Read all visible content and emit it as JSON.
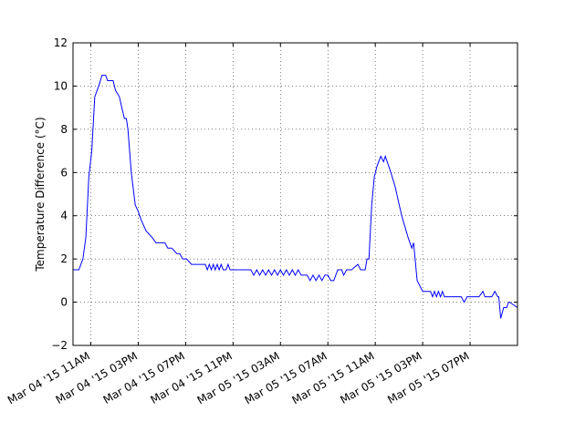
{
  "chart_data": {
    "type": "line",
    "ylabel": "Temperature Difference (°C)",
    "x": [
      "2015-03-04T09:30",
      "2015-03-04T10:00",
      "2015-03-04T10:20",
      "2015-03-04T10:35",
      "2015-03-04T10:50",
      "2015-03-04T11:05",
      "2015-03-04T11:20",
      "2015-03-04T11:40",
      "2015-03-04T11:57",
      "2015-03-04T12:15",
      "2015-03-04T12:25",
      "2015-03-04T12:53",
      "2015-03-04T13:05",
      "2015-03-04T13:25",
      "2015-03-04T13:37",
      "2015-03-04T13:50",
      "2015-03-04T14:00",
      "2015-03-04T14:08",
      "2015-03-04T14:25",
      "2015-03-04T14:45",
      "2015-03-04T15:00",
      "2015-03-04T15:15",
      "2015-03-04T15:40",
      "2015-03-04T16:10",
      "2015-03-04T16:30",
      "2015-03-04T17:15",
      "2015-03-04T17:30",
      "2015-03-04T17:50",
      "2015-03-04T18:15",
      "2015-03-04T18:30",
      "2015-03-04T18:45",
      "2015-03-04T19:05",
      "2015-03-04T19:30",
      "2015-03-04T20:40",
      "2015-03-04T20:50",
      "2015-03-04T21:00",
      "2015-03-04T21:10",
      "2015-03-04T21:20",
      "2015-03-04T21:30",
      "2015-03-04T21:40",
      "2015-03-04T21:50",
      "2015-03-04T22:00",
      "2015-03-04T22:10",
      "2015-03-04T22:25",
      "2015-03-04T22:35",
      "2015-03-04T22:45",
      "2015-03-05T00:30",
      "2015-03-05T00:45",
      "2015-03-05T01:00",
      "2015-03-05T01:15",
      "2015-03-05T01:30",
      "2015-03-05T01:45",
      "2015-03-05T02:00",
      "2015-03-05T02:15",
      "2015-03-05T02:30",
      "2015-03-05T02:45",
      "2015-03-05T03:00",
      "2015-03-05T03:15",
      "2015-03-05T03:30",
      "2015-03-05T03:45",
      "2015-03-05T04:00",
      "2015-03-05T04:15",
      "2015-03-05T04:30",
      "2015-03-05T04:45",
      "2015-03-05T05:15",
      "2015-03-05T05:30",
      "2015-03-05T05:45",
      "2015-03-05T06:00",
      "2015-03-05T06:15",
      "2015-03-05T06:30",
      "2015-03-05T06:45",
      "2015-03-05T07:00",
      "2015-03-05T07:15",
      "2015-03-05T07:30",
      "2015-03-05T07:50",
      "2015-03-05T08:10",
      "2015-03-05T08:20",
      "2015-03-05T08:35",
      "2015-03-05T09:00",
      "2015-03-05T09:32",
      "2015-03-05T09:46",
      "2015-03-05T10:09",
      "2015-03-05T10:18",
      "2015-03-05T10:28",
      "2015-03-05T10:42",
      "2015-03-05T10:55",
      "2015-03-05T11:09",
      "2015-03-05T11:28",
      "2015-03-05T11:42",
      "2015-03-05T11:51",
      "2015-03-05T12:19",
      "2015-03-05T12:42",
      "2015-03-05T12:55",
      "2015-03-05T13:14",
      "2015-03-05T13:46",
      "2015-03-05T14:05",
      "2015-03-05T14:14",
      "2015-03-05T14:32",
      "2015-03-05T14:46",
      "2015-03-05T15:00",
      "2015-03-05T15:40",
      "2015-03-05T15:50",
      "2015-03-05T16:00",
      "2015-03-05T16:10",
      "2015-03-05T16:20",
      "2015-03-05T16:30",
      "2015-03-05T16:40",
      "2015-03-05T16:50",
      "2015-03-05T17:30",
      "2015-03-05T18:15",
      "2015-03-05T18:30",
      "2015-03-05T18:45",
      "2015-03-05T19:45",
      "2015-03-05T20:05",
      "2015-03-05T20:15",
      "2015-03-05T20:50",
      "2015-03-05T21:05",
      "2015-03-05T21:20",
      "2015-03-05T21:25",
      "2015-03-05T21:35",
      "2015-03-05T21:50",
      "2015-03-05T22:05",
      "2015-03-05T22:15",
      "2015-03-05T22:20",
      "2015-03-05T23:00"
    ],
    "series": [
      {
        "color": "#0000ff",
        "values": [
          1.5,
          1.5,
          2.0,
          3.0,
          5.8,
          7.0,
          9.5,
          10.0,
          10.5,
          10.5,
          10.25,
          10.25,
          9.8,
          9.5,
          9.0,
          8.5,
          8.5,
          8.0,
          6.0,
          4.5,
          4.2,
          3.8,
          3.3,
          3.0,
          2.75,
          2.75,
          2.5,
          2.5,
          2.25,
          2.25,
          2.0,
          2.0,
          1.75,
          1.75,
          1.5,
          1.75,
          1.5,
          1.75,
          1.5,
          1.75,
          1.5,
          1.75,
          1.5,
          1.5,
          1.75,
          1.5,
          1.5,
          1.25,
          1.5,
          1.25,
          1.5,
          1.25,
          1.5,
          1.25,
          1.5,
          1.25,
          1.5,
          1.25,
          1.5,
          1.25,
          1.5,
          1.25,
          1.5,
          1.25,
          1.25,
          1.0,
          1.25,
          1.0,
          1.25,
          1.0,
          1.25,
          1.25,
          1.0,
          1.0,
          1.5,
          1.5,
          1.25,
          1.5,
          1.5,
          1.75,
          1.5,
          1.5,
          2.0,
          2.0,
          4.5,
          5.8,
          6.3,
          6.75,
          6.5,
          6.75,
          6.0,
          5.3,
          4.75,
          4.0,
          3.0,
          2.5,
          2.75,
          1.0,
          0.75,
          0.5,
          0.5,
          0.25,
          0.5,
          0.25,
          0.5,
          0.25,
          0.5,
          0.25,
          0.25,
          0.25,
          0.0,
          0.25,
          0.25,
          0.5,
          0.25,
          0.25,
          0.5,
          0.25,
          0.25,
          -0.75,
          -0.25,
          -0.25,
          0.0,
          0.0,
          -0.25
        ]
      }
    ],
    "xlim": [
      "2015-03-04T09:30",
      "2015-03-05T23:00"
    ],
    "xticks": [
      {
        "value": "2015-03-04T11:00",
        "label": "Mar 04 '15 11AM"
      },
      {
        "value": "2015-03-04T15:00",
        "label": "Mar 04 '15 03PM"
      },
      {
        "value": "2015-03-04T19:00",
        "label": "Mar 04 '15 07PM"
      },
      {
        "value": "2015-03-04T23:00",
        "label": "Mar 04 '15 11PM"
      },
      {
        "value": "2015-03-05T03:00",
        "label": "Mar 05 '15 03AM"
      },
      {
        "value": "2015-03-05T07:00",
        "label": "Mar 05 '15 07AM"
      },
      {
        "value": "2015-03-05T11:00",
        "label": "Mar 05 '15 11AM"
      },
      {
        "value": "2015-03-05T15:00",
        "label": "Mar 05 '15 03PM"
      },
      {
        "value": "2015-03-05T19:00",
        "label": "Mar 05 '15 07PM"
      }
    ],
    "ylim": [
      -2,
      12
    ],
    "yticks": [
      {
        "value": -2,
        "label": "−2"
      },
      0,
      2,
      4,
      6,
      8,
      10,
      12
    ],
    "grid": true
  }
}
